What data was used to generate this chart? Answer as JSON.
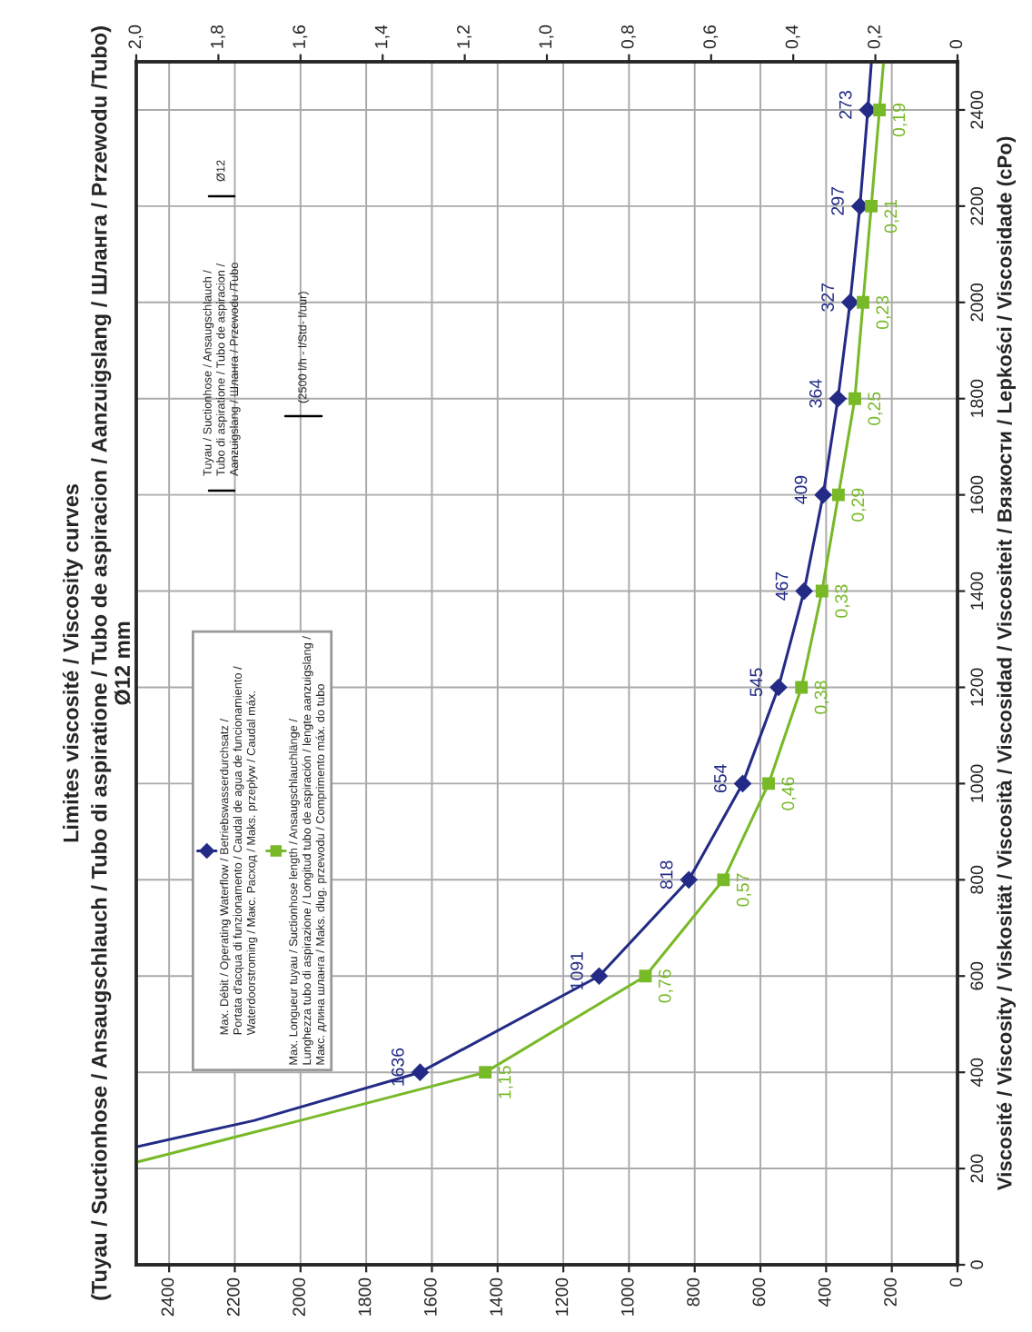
{
  "chart_data": {
    "type": "line",
    "orientation": "horizontal",
    "title": "Limites viscosité / Viscosity curves",
    "subtitle": "(Tuyau / Suctionhose / Ansaugschlauch / Tubo di aspiratione / Tubo de aspiracion / Aanzuigslang / Шланга / Przewodu /Tubo)\nØ12 mm",
    "ylabel": "Viscosité / Viscosity / Viskosität / Viscosità / Viscosidad / Viscositeit / Вязкости / Lepkości / Viscosidade (cPo)",
    "annotations": [
      "Tuyau / Suctionhose / Ansaugschlauch /\nTubo di aspiratione / Tubo de aspiracion /\nAanzuigslang / Шланга / Przewodu /Tubo",
      "Ø12",
      "(2500 l/h - l/Std- l/uur)"
    ],
    "series": [
      {
        "name": "Max. Débit / Operating Waterflow / Betriebswasserdurchsatz /\nPortata d'acqua di funzionamento / Caudal de agua de funcionamiento /\nWaterdoorstroming / Макс. Расход / Maks. przepływ / Caudal máx.",
        "color": "#232b86",
        "marker": "diamond",
        "x": [
          245,
          300,
          400,
          600,
          800,
          1000,
          1200,
          1400,
          1600,
          1800,
          2000,
          2200,
          2400,
          2500
        ],
        "values": [
          2500,
          2140,
          1636,
          1091,
          818,
          654,
          545,
          467,
          409,
          364,
          327,
          297,
          273,
          262
        ],
        "value_labels": [
          null,
          null,
          "1636",
          "1091",
          "818",
          "654",
          "545",
          "467",
          "409",
          "364",
          "327",
          "297",
          "273",
          null
        ]
      },
      {
        "name": "Max. Longueur tuyau / Suctionhose length / Ansaugschlauchlänge /\nLunghezza tubo di aspirazione / Longitud tubo de aspiración / lengte aanzuigslang /\nМакс. длина шланга / Maks. dług. przewodu / Comprimento máx. do tubo",
        "color": "#78b928",
        "marker": "square",
        "axis": "x2",
        "x": [
          213,
          300,
          400,
          600,
          800,
          1000,
          1200,
          1400,
          1600,
          1800,
          2000,
          2200,
          2400,
          2500
        ],
        "values": [
          2.0,
          1.6,
          1.15,
          0.76,
          0.57,
          0.46,
          0.38,
          0.33,
          0.29,
          0.25,
          0.23,
          0.21,
          0.19,
          0.18
        ],
        "value_labels": [
          null,
          null,
          "1,15",
          "0,76",
          "0,57",
          "0,46",
          "0,38",
          "0,33",
          "0,29",
          "0,25",
          "0,23",
          "0,21",
          "0,19",
          null
        ]
      }
    ],
    "xlim": [
      2500,
      0
    ],
    "xticks": [
      0,
      200,
      400,
      600,
      800,
      1000,
      1200,
      1400,
      1600,
      1800,
      2000,
      2200,
      2400
    ],
    "x2lim": [
      2.0,
      0
    ],
    "x2ticks": [
      0,
      {
        "value": 0.2,
        "label": "0,2"
      },
      {
        "value": 0.4,
        "label": "0,4"
      },
      {
        "value": 0.6,
        "label": "0,6"
      },
      {
        "value": 0.8,
        "label": "0,8"
      },
      {
        "value": 1.0,
        "label": "1,0"
      },
      {
        "value": 1.2,
        "label": "1,2"
      },
      {
        "value": 1.4,
        "label": "1,4"
      },
      {
        "value": 1.6,
        "label": "1,6"
      },
      {
        "value": 1.8,
        "label": "1,8"
      },
      {
        "value": 2.0,
        "label": "2,0"
      }
    ],
    "ylim": [
      0,
      2500
    ],
    "yticks": [
      0,
      200,
      400,
      600,
      800,
      1000,
      1200,
      1400,
      1600,
      1800,
      2000,
      2200,
      2400
    ],
    "grid": true,
    "legend": "left",
    "line_style": "solid"
  }
}
